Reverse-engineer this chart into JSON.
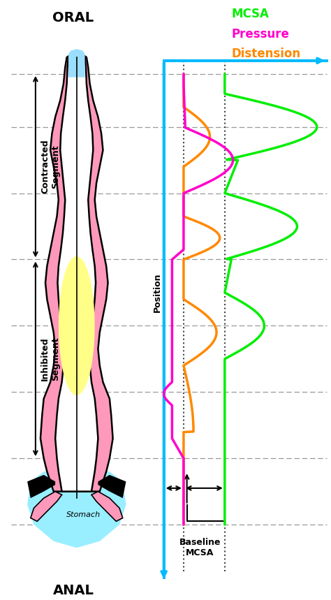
{
  "title_oral": "ORAL",
  "title_anal": "ANAL",
  "label_contracted": "Contracted\nSegment",
  "label_inhibited": "Inhibited\nSegment",
  "label_position": "Position",
  "label_mcsa": "MCSA",
  "label_pressure": "Pressure",
  "label_distension": "Distension",
  "label_baseline": "Baseline\nMCSA",
  "label_stomach": "Stomach",
  "color_mcsa": "#00ee00",
  "color_pressure": "#ff00cc",
  "color_distension": "#ff8800",
  "color_cyan": "#00bbff",
  "color_pink": "#ff99bb",
  "color_light_blue_gut": "#99ddff",
  "color_light_blue_stomach": "#99eeff",
  "color_yellow": "#ffff88",
  "color_black": "#000000",
  "color_white": "#ffffff",
  "background_color": "#ffffff",
  "dashed_line_color": "#999999",
  "dotted_line_color": "#444444",
  "fig_width": 4.74,
  "fig_height": 8.59,
  "dpi": 100
}
